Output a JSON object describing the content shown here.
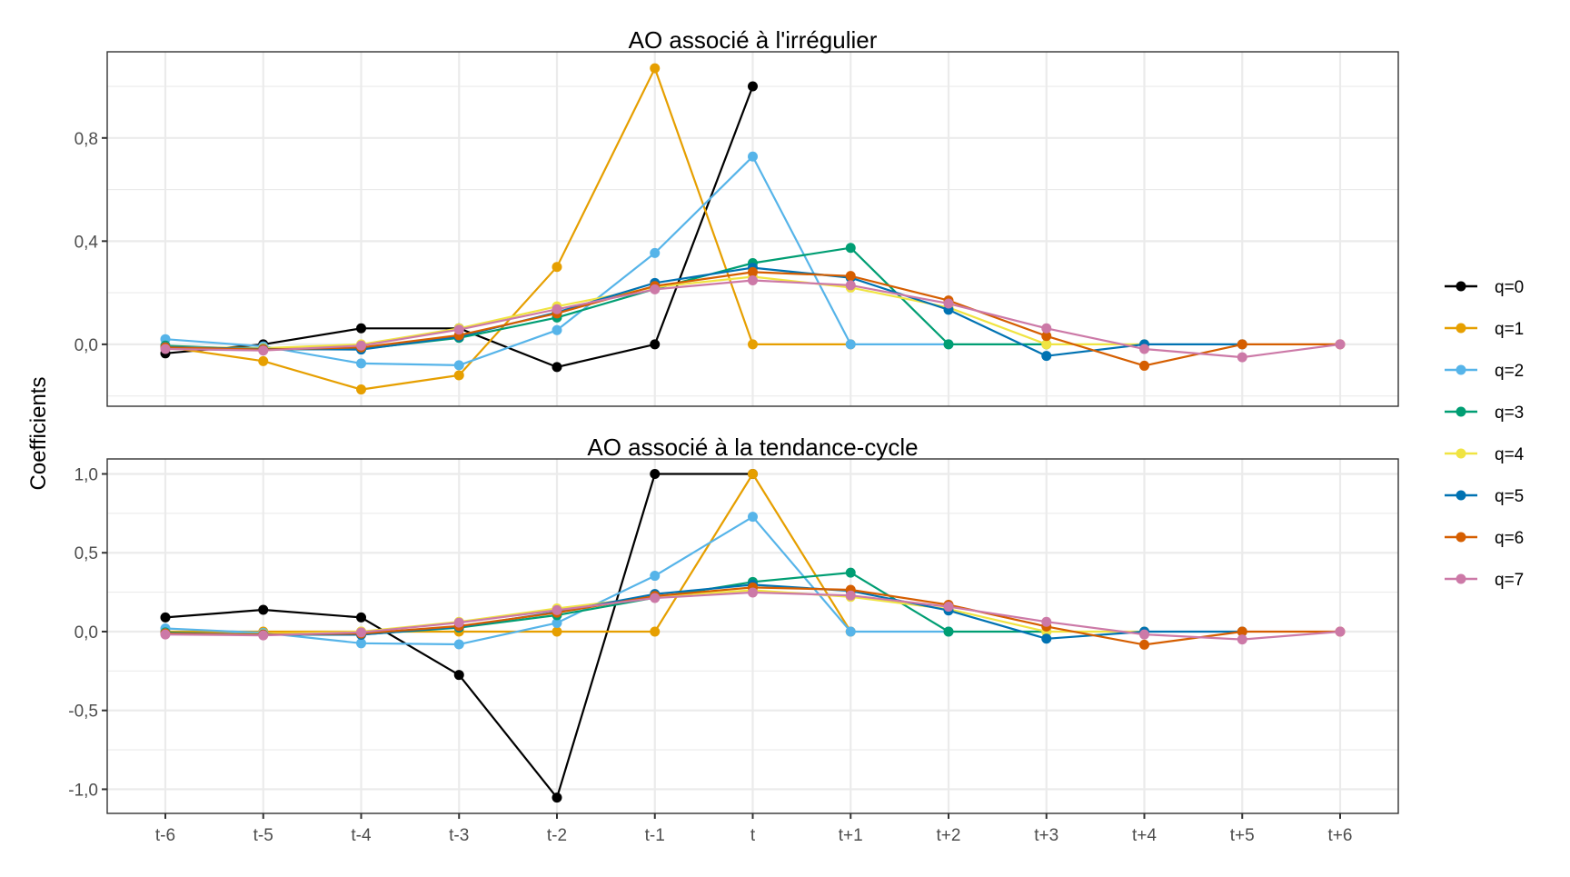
{
  "chart_data": {
    "type": "line",
    "ylabel": "Coefficients",
    "xlabel": "",
    "categories": [
      "t-6",
      "t-5",
      "t-4",
      "t-3",
      "t-2",
      "t-1",
      "t",
      "t+1",
      "t+2",
      "t+3",
      "t+4",
      "t+5",
      "t+6"
    ],
    "legend": {
      "placement": "right",
      "entries": [
        {
          "name": "q=0",
          "color": "#000000"
        },
        {
          "name": "q=1",
          "color": "#E69F00"
        },
        {
          "name": "q=2",
          "color": "#56B4E9"
        },
        {
          "name": "q=3",
          "color": "#009E73"
        },
        {
          "name": "q=4",
          "color": "#F0E442"
        },
        {
          "name": "q=5",
          "color": "#0072B2"
        },
        {
          "name": "q=6",
          "color": "#D55E00"
        },
        {
          "name": "q=7",
          "color": "#CC79A7"
        }
      ]
    },
    "panels": [
      {
        "title": "AO associé à l'irrégulier",
        "ylim": [
          -0.24,
          1.134
        ],
        "yticks": [
          0.0,
          0.4,
          0.8
        ],
        "ytick_labels": [
          "0,0",
          "0,4",
          "0,8"
        ],
        "yminor": [
          -0.2,
          0.2,
          0.6,
          1.0
        ],
        "grid": true,
        "series": [
          {
            "name": "q=0",
            "values": [
              -0.035,
              0.0,
              0.062,
              0.062,
              -0.088,
              0.0,
              1.0
            ]
          },
          {
            "name": "q=1",
            "values": [
              -0.01,
              -0.065,
              -0.175,
              -0.12,
              0.3,
              1.07,
              0.0,
              0.0
            ]
          },
          {
            "name": "q=2",
            "values": [
              0.02,
              -0.008,
              -0.074,
              -0.081,
              0.055,
              0.354,
              0.728,
              0.0,
              0.0
            ]
          },
          {
            "name": "q=3",
            "values": [
              -0.005,
              -0.02,
              -0.018,
              0.025,
              0.104,
              0.215,
              0.315,
              0.374,
              0.0,
              0.0
            ]
          },
          {
            "name": "q=4",
            "values": [
              -0.01,
              -0.015,
              0.0,
              0.062,
              0.147,
              0.222,
              0.262,
              0.22,
              0.143,
              0.0,
              0.0
            ]
          },
          {
            "name": "q=5",
            "values": [
              -0.01,
              -0.018,
              -0.02,
              0.03,
              0.124,
              0.238,
              0.297,
              0.258,
              0.134,
              -0.045,
              0.0,
              0.0
            ]
          },
          {
            "name": "q=6",
            "values": [
              -0.012,
              -0.02,
              -0.012,
              0.035,
              0.12,
              0.226,
              0.28,
              0.265,
              0.17,
              0.032,
              -0.083,
              0.0,
              0.0
            ]
          },
          {
            "name": "q=7",
            "values": [
              -0.018,
              -0.024,
              -0.005,
              0.057,
              0.136,
              0.213,
              0.248,
              0.229,
              0.158,
              0.062,
              -0.018,
              -0.05,
              0.0
            ]
          }
        ]
      },
      {
        "title": "AO associé à la tendance-cycle",
        "ylim": [
          -1.153,
          1.095
        ],
        "yticks": [
          -1.0,
          -0.5,
          0.0,
          0.5,
          1.0
        ],
        "ytick_labels": [
          "-1,0",
          "-0,5",
          "0,0",
          "0,5",
          "1,0"
        ],
        "yminor": [
          -0.75,
          -0.25,
          0.25,
          0.75
        ],
        "grid": true,
        "series": [
          {
            "name": "q=0",
            "values": [
              0.09,
              0.138,
              0.09,
              -0.275,
              -1.053,
              1.0,
              1.0
            ]
          },
          {
            "name": "q=1",
            "values": [
              0.0,
              0.0,
              0.0,
              0.0,
              0.0,
              0.0,
              1.0,
              0.0
            ]
          },
          {
            "name": "q=2",
            "values": [
              0.02,
              -0.008,
              -0.074,
              -0.081,
              0.055,
              0.354,
              0.728,
              0.0,
              0.0
            ]
          },
          {
            "name": "q=3",
            "values": [
              -0.005,
              -0.02,
              -0.018,
              0.025,
              0.104,
              0.215,
              0.315,
              0.374,
              0.0,
              0.0
            ]
          },
          {
            "name": "q=4",
            "values": [
              -0.01,
              -0.015,
              0.0,
              0.062,
              0.147,
              0.222,
              0.262,
              0.22,
              0.143,
              0.0,
              0.0
            ]
          },
          {
            "name": "q=5",
            "values": [
              -0.01,
              -0.018,
              -0.02,
              0.03,
              0.124,
              0.238,
              0.297,
              0.258,
              0.134,
              -0.045,
              0.0,
              0.0
            ]
          },
          {
            "name": "q=6",
            "values": [
              -0.012,
              -0.02,
              -0.012,
              0.035,
              0.12,
              0.226,
              0.28,
              0.265,
              0.17,
              0.032,
              -0.083,
              0.0,
              0.0
            ]
          },
          {
            "name": "q=7",
            "values": [
              -0.018,
              -0.024,
              -0.005,
              0.057,
              0.136,
              0.213,
              0.248,
              0.229,
              0.158,
              0.062,
              -0.018,
              -0.05,
              0.0
            ]
          }
        ]
      }
    ]
  }
}
